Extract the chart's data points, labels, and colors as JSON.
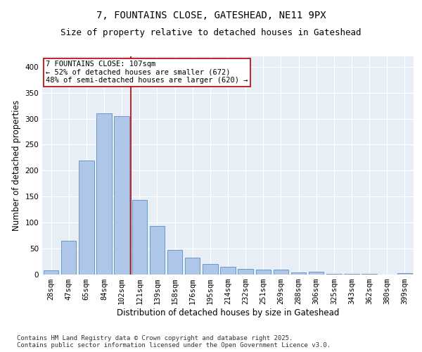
{
  "title_line1": "7, FOUNTAINS CLOSE, GATESHEAD, NE11 9PX",
  "title_line2": "Size of property relative to detached houses in Gateshead",
  "xlabel": "Distribution of detached houses by size in Gateshead",
  "ylabel": "Number of detached properties",
  "categories": [
    "28sqm",
    "47sqm",
    "65sqm",
    "84sqm",
    "102sqm",
    "121sqm",
    "139sqm",
    "158sqm",
    "176sqm",
    "195sqm",
    "214sqm",
    "232sqm",
    "251sqm",
    "269sqm",
    "288sqm",
    "306sqm",
    "325sqm",
    "343sqm",
    "362sqm",
    "380sqm",
    "399sqm"
  ],
  "values": [
    8,
    65,
    220,
    310,
    305,
    143,
    93,
    48,
    33,
    21,
    15,
    11,
    9,
    9,
    4,
    5,
    2,
    2,
    1,
    0,
    3
  ],
  "bar_color": "#aec6e8",
  "bar_edge_color": "#5a8fc0",
  "background_color": "#e8eef5",
  "vline_x": 4.5,
  "vline_color": "#bb0000",
  "annotation_text": "7 FOUNTAINS CLOSE: 107sqm\n← 52% of detached houses are smaller (672)\n48% of semi-detached houses are larger (620) →",
  "annotation_box_color": "#ffffff",
  "annotation_box_edge_color": "#bb0000",
  "ylim": [
    0,
    420
  ],
  "yticks": [
    0,
    50,
    100,
    150,
    200,
    250,
    300,
    350,
    400
  ],
  "footer_text": "Contains HM Land Registry data © Crown copyright and database right 2025.\nContains public sector information licensed under the Open Government Licence v3.0.",
  "title_fontsize": 10,
  "subtitle_fontsize": 9,
  "axis_label_fontsize": 8.5,
  "tick_fontsize": 7.5,
  "annotation_fontsize": 7.5,
  "footer_fontsize": 6.5
}
